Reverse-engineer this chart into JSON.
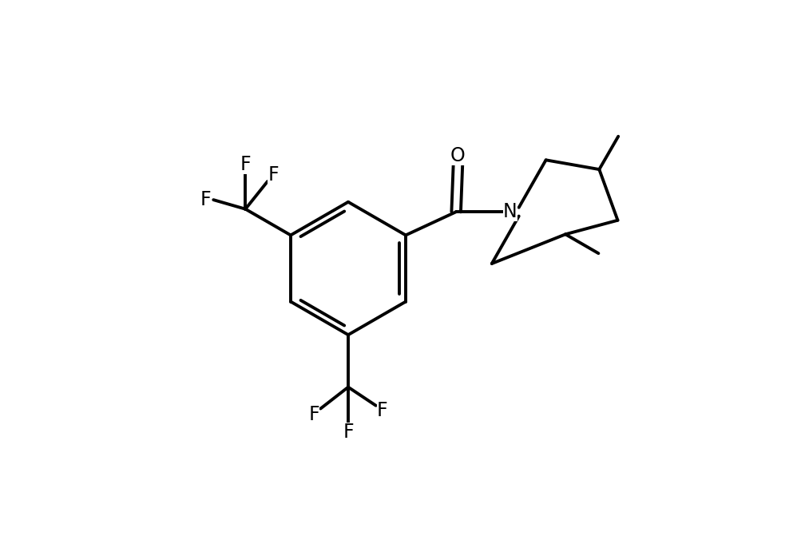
{
  "background_color": "#ffffff",
  "line_color": "#000000",
  "line_width": 2.8,
  "font_size": 17,
  "figsize": [
    10.04,
    6.76
  ],
  "dpi": 100,
  "xlim": [
    0,
    10.04
  ],
  "ylim": [
    0,
    6.76
  ]
}
